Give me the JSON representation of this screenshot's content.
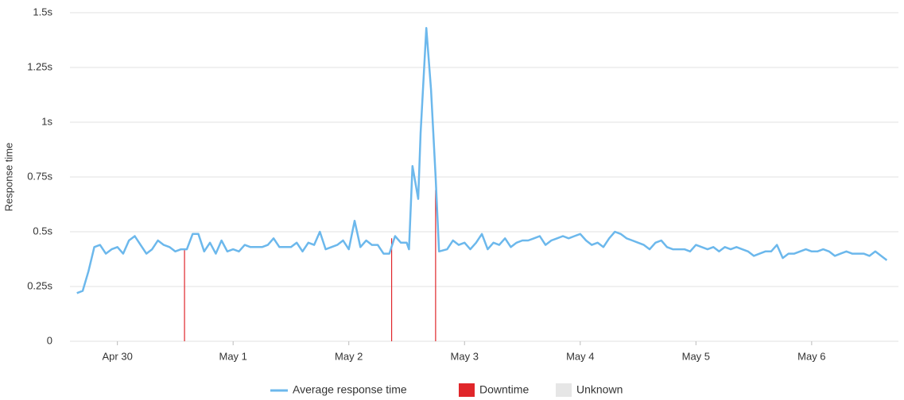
{
  "chart_data": {
    "type": "line",
    "y_label": "Response time",
    "xlim": [
      -0.41,
      6.75
    ],
    "xticks": [
      {
        "value": 0,
        "label": "Apr 30"
      },
      {
        "value": 1,
        "label": "May 1"
      },
      {
        "value": 2,
        "label": "May 2"
      },
      {
        "value": 3,
        "label": "May 3"
      },
      {
        "value": 4,
        "label": "May 4"
      },
      {
        "value": 5,
        "label": "May 5"
      },
      {
        "value": 6,
        "label": "May 6"
      }
    ],
    "ylim": [
      0,
      1.5
    ],
    "yticks": [
      0,
      {
        "value": 0.25,
        "label": "0.25s"
      },
      {
        "value": 0.5,
        "label": "0.5s"
      },
      {
        "value": 0.75,
        "label": "0.75s"
      },
      {
        "value": 1,
        "label": "1s"
      },
      {
        "value": 1.25,
        "label": "1.25s"
      },
      {
        "value": 1.5,
        "label": "1.5s"
      }
    ],
    "grid": true,
    "series": [
      {
        "name": "Average response time",
        "color": "#6cb8ec",
        "kind": "line",
        "x": [
          -0.35,
          -0.3,
          -0.25,
          -0.2,
          -0.15,
          -0.1,
          -0.05,
          0,
          0.05,
          0.1,
          0.15,
          0.2,
          0.25,
          0.3,
          0.35,
          0.4,
          0.45,
          0.5,
          0.55,
          0.6,
          0.65,
          0.7,
          0.75,
          0.8,
          0.85,
          0.9,
          0.95,
          1,
          1.05,
          1.1,
          1.15,
          1.2,
          1.25,
          1.3,
          1.35,
          1.4,
          1.45,
          1.5,
          1.55,
          1.6,
          1.65,
          1.7,
          1.75,
          1.8,
          1.85,
          1.9,
          1.95,
          2,
          2.05,
          2.1,
          2.15,
          2.2,
          2.25,
          2.3,
          2.35,
          2.4,
          2.45,
          2.5,
          2.52,
          2.55,
          2.6,
          2.62,
          2.67,
          2.71,
          2.75,
          2.78,
          2.85,
          2.9,
          2.95,
          3,
          3.05,
          3.1,
          3.15,
          3.2,
          3.25,
          3.3,
          3.35,
          3.4,
          3.45,
          3.5,
          3.55,
          3.6,
          3.65,
          3.7,
          3.75,
          3.8,
          3.85,
          3.9,
          3.95,
          4,
          4.05,
          4.1,
          4.15,
          4.2,
          4.25,
          4.3,
          4.35,
          4.4,
          4.45,
          4.5,
          4.55,
          4.6,
          4.65,
          4.7,
          4.75,
          4.8,
          4.85,
          4.9,
          4.95,
          5,
          5.05,
          5.1,
          5.15,
          5.2,
          5.25,
          5.3,
          5.35,
          5.4,
          5.45,
          5.5,
          5.55,
          5.6,
          5.65,
          5.7,
          5.75,
          5.8,
          5.85,
          5.9,
          5.95,
          6,
          6.05,
          6.1,
          6.15,
          6.2,
          6.25,
          6.3,
          6.35,
          6.4,
          6.45,
          6.5,
          6.55,
          6.6,
          6.65
        ],
        "values": [
          0.22,
          0.23,
          0.32,
          0.43,
          0.44,
          0.4,
          0.42,
          0.43,
          0.4,
          0.46,
          0.48,
          0.44,
          0.4,
          0.42,
          0.46,
          0.44,
          0.43,
          0.41,
          0.42,
          0.42,
          0.49,
          0.49,
          0.41,
          0.45,
          0.4,
          0.46,
          0.41,
          0.42,
          0.41,
          0.44,
          0.43,
          0.43,
          0.43,
          0.44,
          0.47,
          0.43,
          0.43,
          0.43,
          0.45,
          0.41,
          0.45,
          0.44,
          0.5,
          0.42,
          0.43,
          0.44,
          0.46,
          0.42,
          0.55,
          0.43,
          0.46,
          0.44,
          0.44,
          0.4,
          0.4,
          0.48,
          0.45,
          0.45,
          0.42,
          0.8,
          0.65,
          0.95,
          1.43,
          1.15,
          0.75,
          0.41,
          0.42,
          0.46,
          0.44,
          0.45,
          0.42,
          0.45,
          0.49,
          0.42,
          0.45,
          0.44,
          0.47,
          0.43,
          0.45,
          0.46,
          0.46,
          0.47,
          0.48,
          0.44,
          0.46,
          0.47,
          0.48,
          0.47,
          0.48,
          0.49,
          0.46,
          0.44,
          0.45,
          0.43,
          0.47,
          0.5,
          0.49,
          0.47,
          0.46,
          0.45,
          0.44,
          0.42,
          0.45,
          0.46,
          0.43,
          0.42,
          0.42,
          0.42,
          0.41,
          0.44,
          0.43,
          0.42,
          0.43,
          0.41,
          0.43,
          0.42,
          0.43,
          0.42,
          0.41,
          0.39,
          0.4,
          0.41,
          0.41,
          0.44,
          0.38,
          0.4,
          0.4,
          0.41,
          0.42,
          0.41,
          0.41,
          0.42,
          0.41,
          0.39,
          0.4,
          0.41,
          0.4,
          0.4,
          0.4,
          0.39,
          0.41,
          0.39,
          0.37
        ]
      },
      {
        "name": "Downtime",
        "color": "#e0262a",
        "kind": "bar",
        "x": [
          0.58,
          2.37,
          2.75
        ],
        "values": [
          0.42,
          0.47,
          0.69
        ]
      },
      {
        "name": "Unknown",
        "color": "#e6e6e6",
        "kind": "bar"
      }
    ]
  }
}
